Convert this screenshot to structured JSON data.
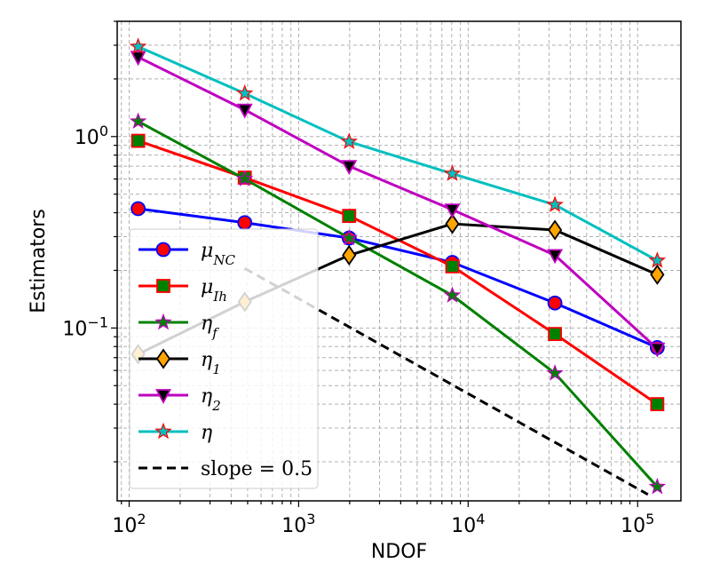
{
  "chart_data": {
    "type": "line",
    "x_scale": "log",
    "y_scale": "log",
    "xlabel": "NDOF",
    "ylabel": "Estimators",
    "xlim": [
      85,
      180000
    ],
    "ylim": [
      0.0125,
      4.0
    ],
    "grid": "major and minor, dashed gray",
    "legend_position": "lower-left",
    "x_ticks": [
      {
        "value": 100,
        "base": "10",
        "exp": "2"
      },
      {
        "value": 1000,
        "base": "10",
        "exp": "3"
      },
      {
        "value": 10000,
        "base": "10",
        "exp": "4"
      },
      {
        "value": 100000,
        "base": "10",
        "exp": "5"
      }
    ],
    "y_ticks": [
      {
        "value": 0.1,
        "base": "10",
        "exp": "−1"
      },
      {
        "value": 1,
        "base": "10",
        "exp": "0"
      }
    ],
    "x": [
      113,
      481,
      1985,
      8065,
      32513,
      130561
    ],
    "series": [
      {
        "name": "mu_NC",
        "label_main": "μ",
        "label_sub": "NC",
        "color": "#0000ff",
        "marker": "circle",
        "marker_face": "#ff0000",
        "marker_edge": "#0000ff",
        "values": [
          0.42,
          0.355,
          0.295,
          0.22,
          0.135,
          0.079
        ]
      },
      {
        "name": "mu_Ih",
        "label_main": "μ",
        "label_sub": "Ih",
        "color": "#ff0000",
        "marker": "square",
        "marker_face": "#008000",
        "marker_edge": "#ff0000",
        "values": [
          0.95,
          0.61,
          0.385,
          0.21,
          0.093,
          0.04
        ]
      },
      {
        "name": "eta_f",
        "label_main": "η",
        "label_sub": "f",
        "color": "#008000",
        "marker": "star",
        "marker_face": "#008000",
        "marker_edge": "#bf00bf",
        "values": [
          1.2,
          0.6,
          0.295,
          0.148,
          0.058,
          0.0148
        ]
      },
      {
        "name": "eta_1",
        "label_main": "η",
        "label_sub": "1",
        "color": "#000000",
        "marker": "diamond",
        "marker_face": "#ffa500",
        "marker_edge": "#000000",
        "values": [
          0.073,
          0.137,
          0.24,
          0.35,
          0.325,
          0.19
        ]
      },
      {
        "name": "eta_2",
        "label_main": "η",
        "label_sub": "2",
        "color": "#bf00bf",
        "marker": "triangle-down",
        "marker_face": "#000000",
        "marker_edge": "#bf00bf",
        "values": [
          2.6,
          1.38,
          0.7,
          0.415,
          0.24,
          0.078
        ]
      },
      {
        "name": "eta",
        "label_main": "η",
        "label_sub": "",
        "color": "#00bfbf",
        "marker": "star",
        "marker_face": "#00bfbf",
        "marker_edge": "#ff0000",
        "values": [
          2.95,
          1.68,
          0.94,
          0.64,
          0.44,
          0.225
        ]
      },
      {
        "name": "slope",
        "label_main": "slope = 0.5",
        "label_sub": "",
        "color": "#000000",
        "marker": "none",
        "dashed": true,
        "x": [
          480,
          115000
        ],
        "values": [
          0.205,
          0.0135
        ]
      }
    ]
  }
}
